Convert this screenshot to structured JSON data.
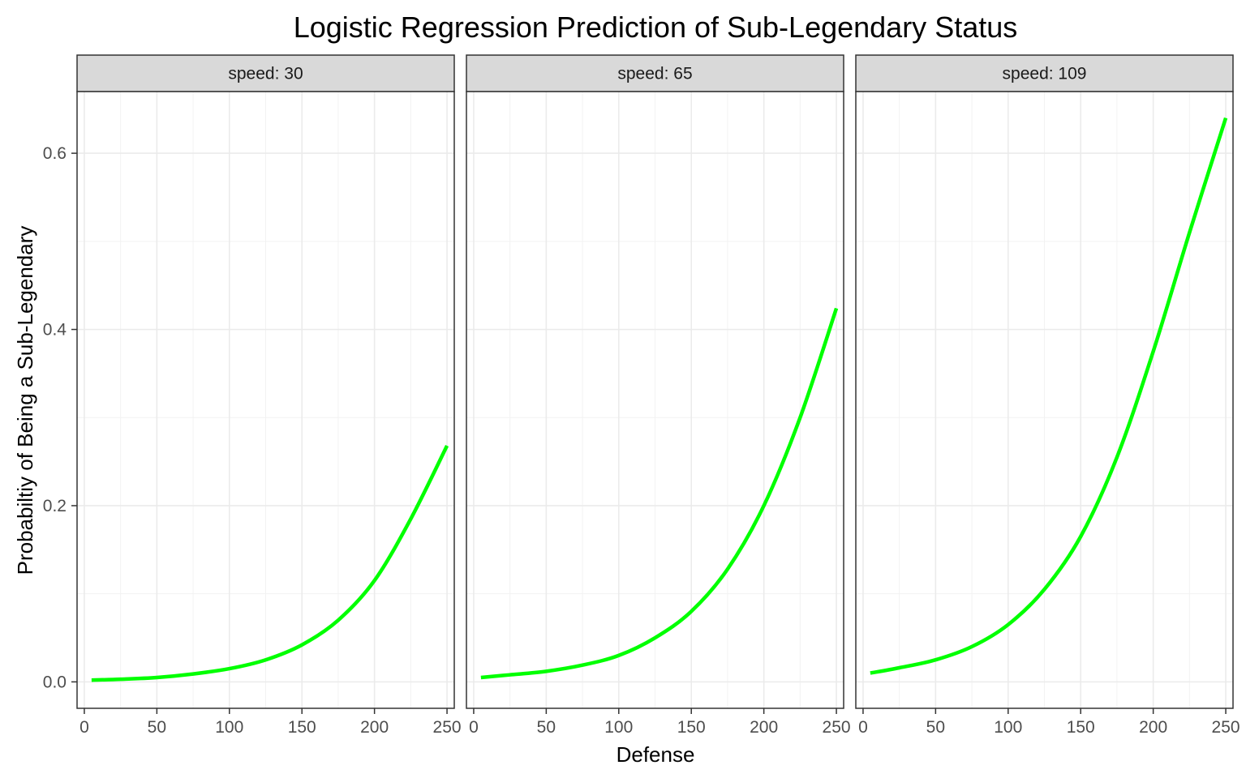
{
  "chart_data": {
    "type": "line",
    "title": "Logistic Regression Prediction of Sub-Legendary Status",
    "xlabel": "Defense",
    "ylabel": "Probabiltiy of Being a Sub-Legendary",
    "xlim": [
      -5,
      255
    ],
    "ylim": [
      -0.03,
      0.67
    ],
    "x_ticks": [
      0,
      50,
      100,
      150,
      200,
      250
    ],
    "x_tick_labels": [
      "0",
      "50",
      "100",
      "150",
      "200",
      "250"
    ],
    "y_ticks": [
      0.0,
      0.2,
      0.4,
      0.6
    ],
    "y_tick_labels": [
      "0.0",
      "0.2",
      "0.4",
      "0.6"
    ],
    "grid": true,
    "line_color": "#00ff00",
    "facet_strip_color": "#d9d9d9",
    "panels": [
      {
        "strip_label": "speed: 30",
        "x": [
          5,
          25,
          50,
          75,
          100,
          125,
          150,
          175,
          200,
          225,
          250
        ],
        "y": [
          0.002,
          0.003,
          0.005,
          0.009,
          0.015,
          0.025,
          0.042,
          0.07,
          0.115,
          0.185,
          0.268
        ]
      },
      {
        "strip_label": "speed: 65",
        "x": [
          5,
          25,
          50,
          75,
          100,
          125,
          150,
          175,
          200,
          225,
          250
        ],
        "y": [
          0.005,
          0.008,
          0.012,
          0.019,
          0.03,
          0.05,
          0.08,
          0.128,
          0.2,
          0.3,
          0.424
        ]
      },
      {
        "strip_label": "speed: 109",
        "x": [
          5,
          25,
          50,
          75,
          100,
          125,
          150,
          175,
          200,
          225,
          250
        ],
        "y": [
          0.01,
          0.016,
          0.025,
          0.04,
          0.065,
          0.105,
          0.165,
          0.255,
          0.375,
          0.51,
          0.64
        ]
      }
    ]
  }
}
